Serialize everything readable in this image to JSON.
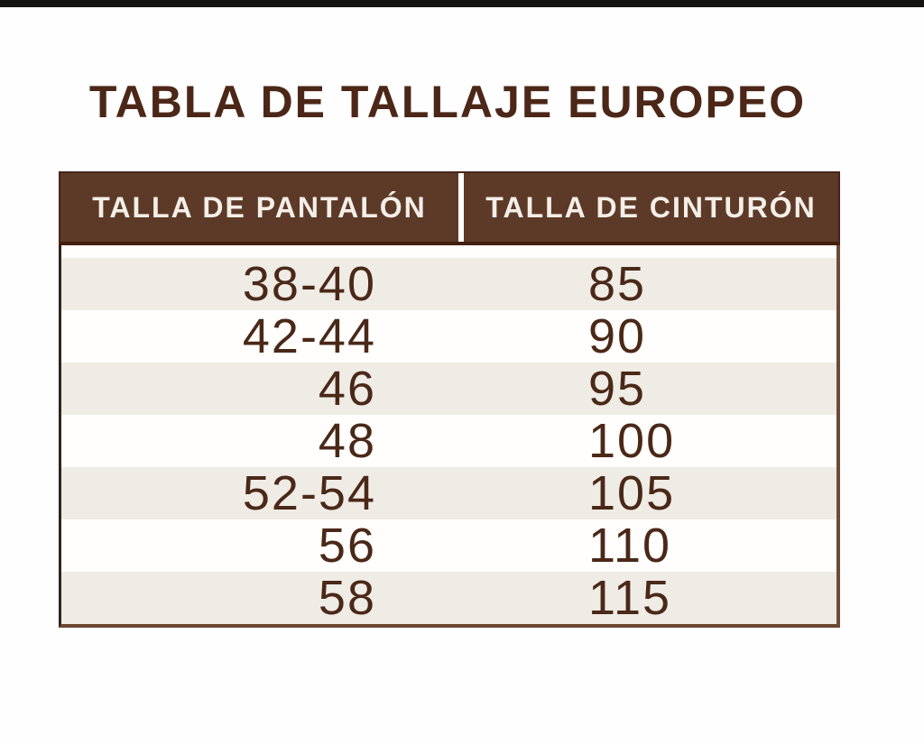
{
  "chart_data": {
    "type": "table",
    "title": "TABLA DE TALLAJE EUROPEO",
    "columns": [
      "TALLA DE PANTALÓN",
      "TALLA DE CINTURÓN"
    ],
    "rows": [
      [
        "38-40",
        "85"
      ],
      [
        "42-44",
        "90"
      ],
      [
        "46",
        "95"
      ],
      [
        "48",
        "100"
      ],
      [
        "52-54",
        "105"
      ],
      [
        "56",
        "110"
      ],
      [
        "58",
        "115"
      ]
    ],
    "layout": {
      "striped": true,
      "first_data_row_shaded": true,
      "header_position": "top",
      "column_1_alignment": "right",
      "column_2_alignment": "left"
    }
  },
  "theme": {
    "background": "#fefefe",
    "top_bar_color": "#151311",
    "title_color": "#4c2718",
    "header_bg": "#5d3a27",
    "header_text": "#f4eee8",
    "header_outline": "#45261a",
    "header_bottom_border": "#441f10",
    "row_bg": "#fffefd",
    "row_alt_bg": "#efebe5",
    "cell_text": "#4a2817",
    "body_border_left": "#342318",
    "body_border_right": "#6d4b36",
    "body_border_bottom": "#6b4630"
  }
}
